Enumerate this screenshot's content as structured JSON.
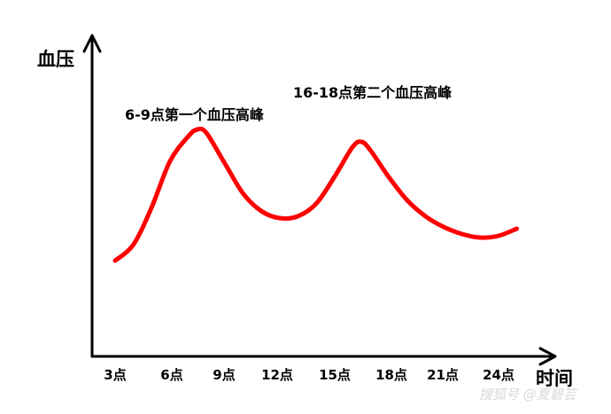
{
  "chart_data": {
    "type": "line",
    "xlabel": "时间",
    "ylabel": "血压",
    "categories": [
      "3点",
      "6点",
      "9点",
      "12点",
      "15点",
      "18点",
      "21点",
      "24点"
    ],
    "x": [
      3,
      4,
      5,
      6,
      7,
      7.5,
      8,
      9,
      10,
      11,
      12,
      13,
      14,
      15,
      16,
      16.5,
      17,
      18,
      19,
      20,
      21,
      22,
      23,
      24,
      25
    ],
    "y": [
      8,
      17,
      38,
      64,
      78,
      82,
      80,
      63,
      46,
      36,
      32,
      33,
      40,
      55,
      72,
      75,
      70,
      55,
      42,
      33,
      27,
      23,
      21,
      22,
      26
    ],
    "annotations": [
      {
        "text": "6-9点第一个血压高峰"
      },
      {
        "text": "16-18点第二个血压高峰"
      }
    ],
    "grid": false,
    "legend": "none",
    "line_color": "#ff0000",
    "axis_color": "#000000"
  },
  "watermark": "搜狐号 @夏碧芸"
}
